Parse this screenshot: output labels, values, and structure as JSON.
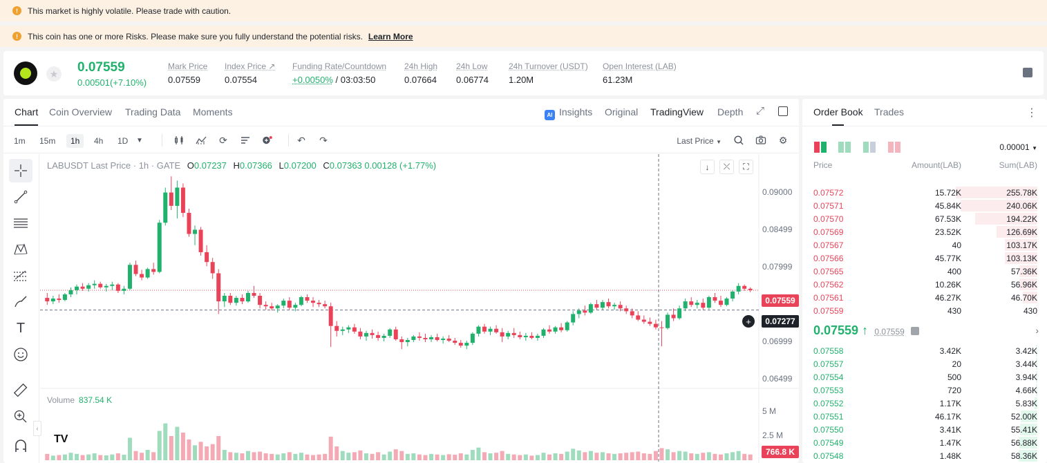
{
  "banners": {
    "volatile": "This market is highly volatile. Please trade with caution.",
    "risk": "This coin has one or more Risks. Please make sure you fully understand the potential risks.",
    "learn_more": "Learn More"
  },
  "ticker": {
    "last_price": "0.07559",
    "change": "0.00501(+7.10%)",
    "stats": [
      {
        "label": "Mark Price",
        "value": "0.07559"
      },
      {
        "label": "Index Price ↗",
        "value": "0.07554"
      },
      {
        "label": "Funding Rate/Countdown",
        "value_green": "+0.0050%",
        "value": "/ 03:03:50"
      },
      {
        "label": "24h High",
        "value": "0.07664"
      },
      {
        "label": "24h Low",
        "value": "0.06774"
      },
      {
        "label": "24h Turnover (USDT)",
        "value": "1.20M"
      },
      {
        "label": "Open Interest (LAB)",
        "value": "61.23M"
      }
    ]
  },
  "chart_tabs": [
    "Chart",
    "Coin Overview",
    "Trading Data",
    "Moments"
  ],
  "view_tabs": {
    "insights": "Insights",
    "original": "Original",
    "tradingview": "TradingView",
    "depth": "Depth"
  },
  "ai_badge": "AI",
  "intervals": [
    "1m",
    "15m",
    "1h",
    "4h",
    "1D"
  ],
  "price_source": "Last Price",
  "legend": {
    "title": "LABUSDT Last Price · 1h · GATE",
    "o": "O",
    "o_val": "0.07237",
    "h": "H",
    "h_val": "0.07366",
    "l": "L",
    "l_val": "0.07200",
    "c": "C",
    "c_val": "0.07363",
    "chg": "0.00128 (+1.77%)"
  },
  "volume": {
    "label": "Volume",
    "value": "837.54 K",
    "tag": "766.8 K",
    "axis": [
      "5 M",
      "2.5 M"
    ]
  },
  "y_axis": [
    "0.09000",
    "0.08499",
    "0.07999",
    "0.06999",
    "0.06499"
  ],
  "price_tags": {
    "last": "0.07559",
    "cross": "0.07277"
  },
  "tv_logo": "TV",
  "colors": {
    "up": "#20b26c",
    "down": "#e94359"
  },
  "chart_data": {
    "type": "candlestick",
    "ylim": [
      0.0625,
      0.093
    ],
    "ohlc": [
      [
        0.0745,
        0.0752,
        0.0735,
        0.074
      ],
      [
        0.074,
        0.0748,
        0.0736,
        0.0744
      ],
      [
        0.0744,
        0.075,
        0.0738,
        0.0742
      ],
      [
        0.0742,
        0.0752,
        0.074,
        0.075
      ],
      [
        0.075,
        0.076,
        0.0746,
        0.0756
      ],
      [
        0.0756,
        0.0764,
        0.075,
        0.0761
      ],
      [
        0.0761,
        0.0766,
        0.0755,
        0.0758
      ],
      [
        0.0758,
        0.0766,
        0.0754,
        0.0763
      ],
      [
        0.0763,
        0.077,
        0.0758,
        0.0765
      ],
      [
        0.0765,
        0.0768,
        0.0758,
        0.076
      ],
      [
        0.076,
        0.0765,
        0.0754,
        0.0762
      ],
      [
        0.0762,
        0.0768,
        0.0756,
        0.0764
      ],
      [
        0.0764,
        0.0766,
        0.0752,
        0.0755
      ],
      [
        0.0755,
        0.0762,
        0.075,
        0.0758
      ],
      [
        0.0758,
        0.0795,
        0.0756,
        0.0792
      ],
      [
        0.0792,
        0.0798,
        0.0776,
        0.0779
      ],
      [
        0.0779,
        0.0785,
        0.077,
        0.0774
      ],
      [
        0.0774,
        0.0788,
        0.0772,
        0.0786
      ],
      [
        0.0786,
        0.0795,
        0.0778,
        0.0782
      ],
      [
        0.0782,
        0.0856,
        0.078,
        0.0852
      ],
      [
        0.0852,
        0.0902,
        0.0848,
        0.0895
      ],
      [
        0.0895,
        0.0918,
        0.087,
        0.0876
      ],
      [
        0.0876,
        0.0912,
        0.0858,
        0.0902
      ],
      [
        0.0902,
        0.0908,
        0.086,
        0.0866
      ],
      [
        0.0866,
        0.0872,
        0.0832,
        0.0836
      ],
      [
        0.0836,
        0.0848,
        0.082,
        0.0842
      ],
      [
        0.0842,
        0.0846,
        0.0805,
        0.081
      ],
      [
        0.081,
        0.082,
        0.079,
        0.0796
      ],
      [
        0.0796,
        0.0802,
        0.0772,
        0.078
      ],
      [
        0.078,
        0.0786,
        0.0722,
        0.074
      ],
      [
        0.074,
        0.0752,
        0.0732,
        0.0748
      ],
      [
        0.0748,
        0.0752,
        0.0735,
        0.0738
      ],
      [
        0.0738,
        0.0748,
        0.0734,
        0.0745
      ],
      [
        0.0745,
        0.075,
        0.0736,
        0.074
      ],
      [
        0.074,
        0.0755,
        0.0738,
        0.0752
      ],
      [
        0.0752,
        0.0762,
        0.0745,
        0.0748
      ],
      [
        0.0748,
        0.0752,
        0.073,
        0.0735
      ],
      [
        0.0735,
        0.074,
        0.0728,
        0.0733
      ],
      [
        0.0733,
        0.0738,
        0.0727,
        0.073
      ],
      [
        0.073,
        0.0736,
        0.0724,
        0.0734
      ],
      [
        0.0734,
        0.0744,
        0.073,
        0.0741
      ],
      [
        0.0741,
        0.0746,
        0.0728,
        0.0731
      ],
      [
        0.0731,
        0.0738,
        0.0726,
        0.0735
      ],
      [
        0.0735,
        0.0748,
        0.0733,
        0.0746
      ],
      [
        0.0746,
        0.075,
        0.0738,
        0.0741
      ],
      [
        0.0741,
        0.0746,
        0.0732,
        0.0738
      ],
      [
        0.0738,
        0.0742,
        0.0732,
        0.0736
      ],
      [
        0.0736,
        0.0741,
        0.073,
        0.0733
      ],
      [
        0.0733,
        0.0738,
        0.0675,
        0.0705
      ],
      [
        0.0705,
        0.0712,
        0.069,
        0.0698
      ],
      [
        0.0698,
        0.0704,
        0.0692,
        0.07
      ],
      [
        0.07,
        0.0706,
        0.0695,
        0.0703
      ],
      [
        0.0703,
        0.0708,
        0.0694,
        0.0697
      ],
      [
        0.0697,
        0.0702,
        0.0686,
        0.069
      ],
      [
        0.069,
        0.0698,
        0.0684,
        0.0695
      ],
      [
        0.0695,
        0.07,
        0.0687,
        0.0692
      ],
      [
        0.0692,
        0.0697,
        0.0684,
        0.0688
      ],
      [
        0.0688,
        0.0694,
        0.0683,
        0.0691
      ],
      [
        0.0691,
        0.0702,
        0.0688,
        0.07
      ],
      [
        0.07,
        0.0704,
        0.0684,
        0.0686
      ],
      [
        0.0686,
        0.069,
        0.0672,
        0.0682
      ],
      [
        0.0682,
        0.0688,
        0.0676,
        0.0685
      ],
      [
        0.0685,
        0.0692,
        0.0682,
        0.069
      ],
      [
        0.069,
        0.0696,
        0.0684,
        0.0688
      ],
      [
        0.0688,
        0.0694,
        0.0682,
        0.0686
      ],
      [
        0.0686,
        0.0692,
        0.0682,
        0.0689
      ],
      [
        0.0689,
        0.0694,
        0.0683,
        0.0685
      ],
      [
        0.0685,
        0.069,
        0.068,
        0.0687
      ],
      [
        0.0687,
        0.0692,
        0.0682,
        0.0684
      ],
      [
        0.0684,
        0.0688,
        0.0678,
        0.0681
      ],
      [
        0.0681,
        0.0685,
        0.0674,
        0.0677
      ],
      [
        0.0677,
        0.0684,
        0.0672,
        0.0681
      ],
      [
        0.0681,
        0.0696,
        0.0678,
        0.0694
      ],
      [
        0.0694,
        0.0706,
        0.069,
        0.0704
      ],
      [
        0.0704,
        0.0708,
        0.0694,
        0.0697
      ],
      [
        0.0697,
        0.0704,
        0.0692,
        0.0701
      ],
      [
        0.0701,
        0.0706,
        0.0694,
        0.0696
      ],
      [
        0.0696,
        0.0702,
        0.0682,
        0.069
      ],
      [
        0.069,
        0.0698,
        0.0686,
        0.0695
      ],
      [
        0.0695,
        0.0702,
        0.0688,
        0.0692
      ],
      [
        0.0692,
        0.0697,
        0.0686,
        0.0689
      ],
      [
        0.0689,
        0.0695,
        0.0684,
        0.0691
      ],
      [
        0.0691,
        0.0696,
        0.0686,
        0.0688
      ],
      [
        0.0688,
        0.0694,
        0.0684,
        0.0691
      ],
      [
        0.0691,
        0.0702,
        0.0688,
        0.07
      ],
      [
        0.07,
        0.0706,
        0.0694,
        0.0697
      ],
      [
        0.0697,
        0.0705,
        0.0694,
        0.0703
      ],
      [
        0.0703,
        0.0709,
        0.0696,
        0.0699
      ],
      [
        0.0699,
        0.0712,
        0.0697,
        0.071
      ],
      [
        0.071,
        0.0726,
        0.0706,
        0.0722
      ],
      [
        0.0722,
        0.073,
        0.0716,
        0.0727
      ],
      [
        0.0727,
        0.0734,
        0.072,
        0.0724
      ],
      [
        0.0724,
        0.0738,
        0.0722,
        0.0736
      ],
      [
        0.0736,
        0.0742,
        0.0728,
        0.0731
      ],
      [
        0.0731,
        0.0742,
        0.0728,
        0.0739
      ],
      [
        0.0739,
        0.0744,
        0.073,
        0.0733
      ],
      [
        0.0733,
        0.0738,
        0.0728,
        0.0735
      ],
      [
        0.0735,
        0.074,
        0.0726,
        0.073
      ],
      [
        0.073,
        0.0734,
        0.0722,
        0.0726
      ],
      [
        0.0726,
        0.073,
        0.0716,
        0.072
      ],
      [
        0.072,
        0.0726,
        0.0712,
        0.0714
      ],
      [
        0.0714,
        0.072,
        0.0708,
        0.0711
      ],
      [
        0.0711,
        0.0717,
        0.0705,
        0.0708
      ],
      [
        0.0708,
        0.0714,
        0.07,
        0.0703
      ],
      [
        0.0703,
        0.0712,
        0.0676,
        0.0702
      ],
      [
        0.0702,
        0.0724,
        0.07,
        0.0721
      ],
      [
        0.0721,
        0.073,
        0.0712,
        0.0716
      ],
      [
        0.0716,
        0.0734,
        0.0714,
        0.073
      ],
      [
        0.073,
        0.0744,
        0.0726,
        0.074
      ],
      [
        0.074,
        0.0746,
        0.0732,
        0.0735
      ],
      [
        0.0735,
        0.0742,
        0.073,
        0.0738
      ],
      [
        0.0738,
        0.0744,
        0.0728,
        0.0731
      ],
      [
        0.0731,
        0.0748,
        0.0729,
        0.0746
      ],
      [
        0.0746,
        0.0752,
        0.0738,
        0.0741
      ],
      [
        0.0741,
        0.0748,
        0.0732,
        0.0735
      ],
      [
        0.0735,
        0.0746,
        0.0733,
        0.0744
      ],
      [
        0.0744,
        0.0756,
        0.074,
        0.0754
      ],
      [
        0.0754,
        0.0766,
        0.075,
        0.0762
      ],
      [
        0.0762,
        0.0764,
        0.0755,
        0.0758
      ],
      [
        0.0758,
        0.076,
        0.0753,
        0.0756
      ]
    ],
    "volume": [
      0.55,
      0.4,
      0.45,
      0.5,
      0.65,
      0.55,
      0.45,
      0.5,
      0.6,
      0.45,
      0.42,
      0.5,
      0.6,
      0.48,
      1.95,
      0.8,
      0.65,
      0.9,
      0.7,
      2.55,
      3.2,
      2.1,
      2.9,
      2.4,
      1.8,
      1.3,
      1.6,
      1.2,
      1.4,
      2.1,
      0.9,
      0.7,
      0.65,
      0.6,
      0.8,
      0.7,
      0.75,
      0.6,
      0.55,
      0.5,
      0.6,
      0.7,
      0.55,
      0.65,
      0.5,
      0.45,
      0.5,
      0.55,
      2.05,
      1.2,
      0.8,
      0.65,
      0.7,
      0.85,
      0.6,
      0.55,
      0.7,
      0.5,
      0.75,
      0.95,
      0.8,
      0.55,
      0.6,
      0.5,
      0.45,
      0.55,
      0.5,
      0.45,
      0.52,
      0.48,
      0.6,
      0.5,
      0.9,
      1.1,
      0.7,
      0.6,
      0.65,
      0.8,
      0.55,
      0.5,
      0.45,
      0.5,
      0.4,
      0.45,
      0.65,
      0.5,
      0.6,
      0.55,
      0.75,
      1.0,
      0.85,
      0.7,
      0.8,
      0.65,
      0.7,
      0.6,
      0.55,
      0.6,
      0.65,
      0.7,
      0.75,
      0.6,
      0.55,
      0.8,
      1.05,
      0.95,
      0.7,
      0.8,
      0.75,
      0.6,
      0.55,
      0.65,
      0.7,
      0.55,
      0.5,
      0.6,
      0.7,
      0.8,
      0.55,
      0.5
    ],
    "vol_max": 6.0
  },
  "order_book": {
    "tabs": [
      "Order Book",
      "Trades"
    ],
    "precision": "0.00001",
    "headers": {
      "price": "Price",
      "amount": "Amount(LAB)",
      "sum": "Sum(LAB)"
    },
    "asks": [
      {
        "price": "0.07572",
        "amount": "15.72K",
        "sum": "255.78K",
        "depth": 1.0
      },
      {
        "price": "0.07571",
        "amount": "45.84K",
        "sum": "240.06K",
        "depth": 0.94
      },
      {
        "price": "0.07570",
        "amount": "67.53K",
        "sum": "194.22K",
        "depth": 0.76
      },
      {
        "price": "0.07569",
        "amount": "23.52K",
        "sum": "126.69K",
        "depth": 0.5
      },
      {
        "price": "0.07567",
        "amount": "40",
        "sum": "103.17K",
        "depth": 0.4
      },
      {
        "price": "0.07566",
        "amount": "45.77K",
        "sum": "103.13K",
        "depth": 0.4
      },
      {
        "price": "0.07565",
        "amount": "400",
        "sum": "57.36K",
        "depth": 0.22
      },
      {
        "price": "0.07562",
        "amount": "10.26K",
        "sum": "56.96K",
        "depth": 0.22
      },
      {
        "price": "0.07561",
        "amount": "46.27K",
        "sum": "46.70K",
        "depth": 0.18
      },
      {
        "price": "0.07559",
        "amount": "430",
        "sum": "430",
        "depth": 0.01
      }
    ],
    "mid_price": "0.07559 ↑",
    "mark_price": "0.07559",
    "bids": [
      {
        "price": "0.07558",
        "amount": "3.42K",
        "sum": "3.42K",
        "depth": 0.02
      },
      {
        "price": "0.07557",
        "amount": "20",
        "sum": "3.44K",
        "depth": 0.02
      },
      {
        "price": "0.07554",
        "amount": "500",
        "sum": "3.94K",
        "depth": 0.02
      },
      {
        "price": "0.07553",
        "amount": "720",
        "sum": "4.66K",
        "depth": 0.02
      },
      {
        "price": "0.07552",
        "amount": "1.17K",
        "sum": "5.83K",
        "depth": 0.03
      },
      {
        "price": "0.07551",
        "amount": "46.17K",
        "sum": "52.00K",
        "depth": 0.2
      },
      {
        "price": "0.07550",
        "amount": "3.41K",
        "sum": "55.41K",
        "depth": 0.21
      },
      {
        "price": "0.07549",
        "amount": "1.47K",
        "sum": "56.88K",
        "depth": 0.22
      },
      {
        "price": "0.07548",
        "amount": "1.48K",
        "sum": "58.36K",
        "depth": 0.23
      }
    ]
  }
}
